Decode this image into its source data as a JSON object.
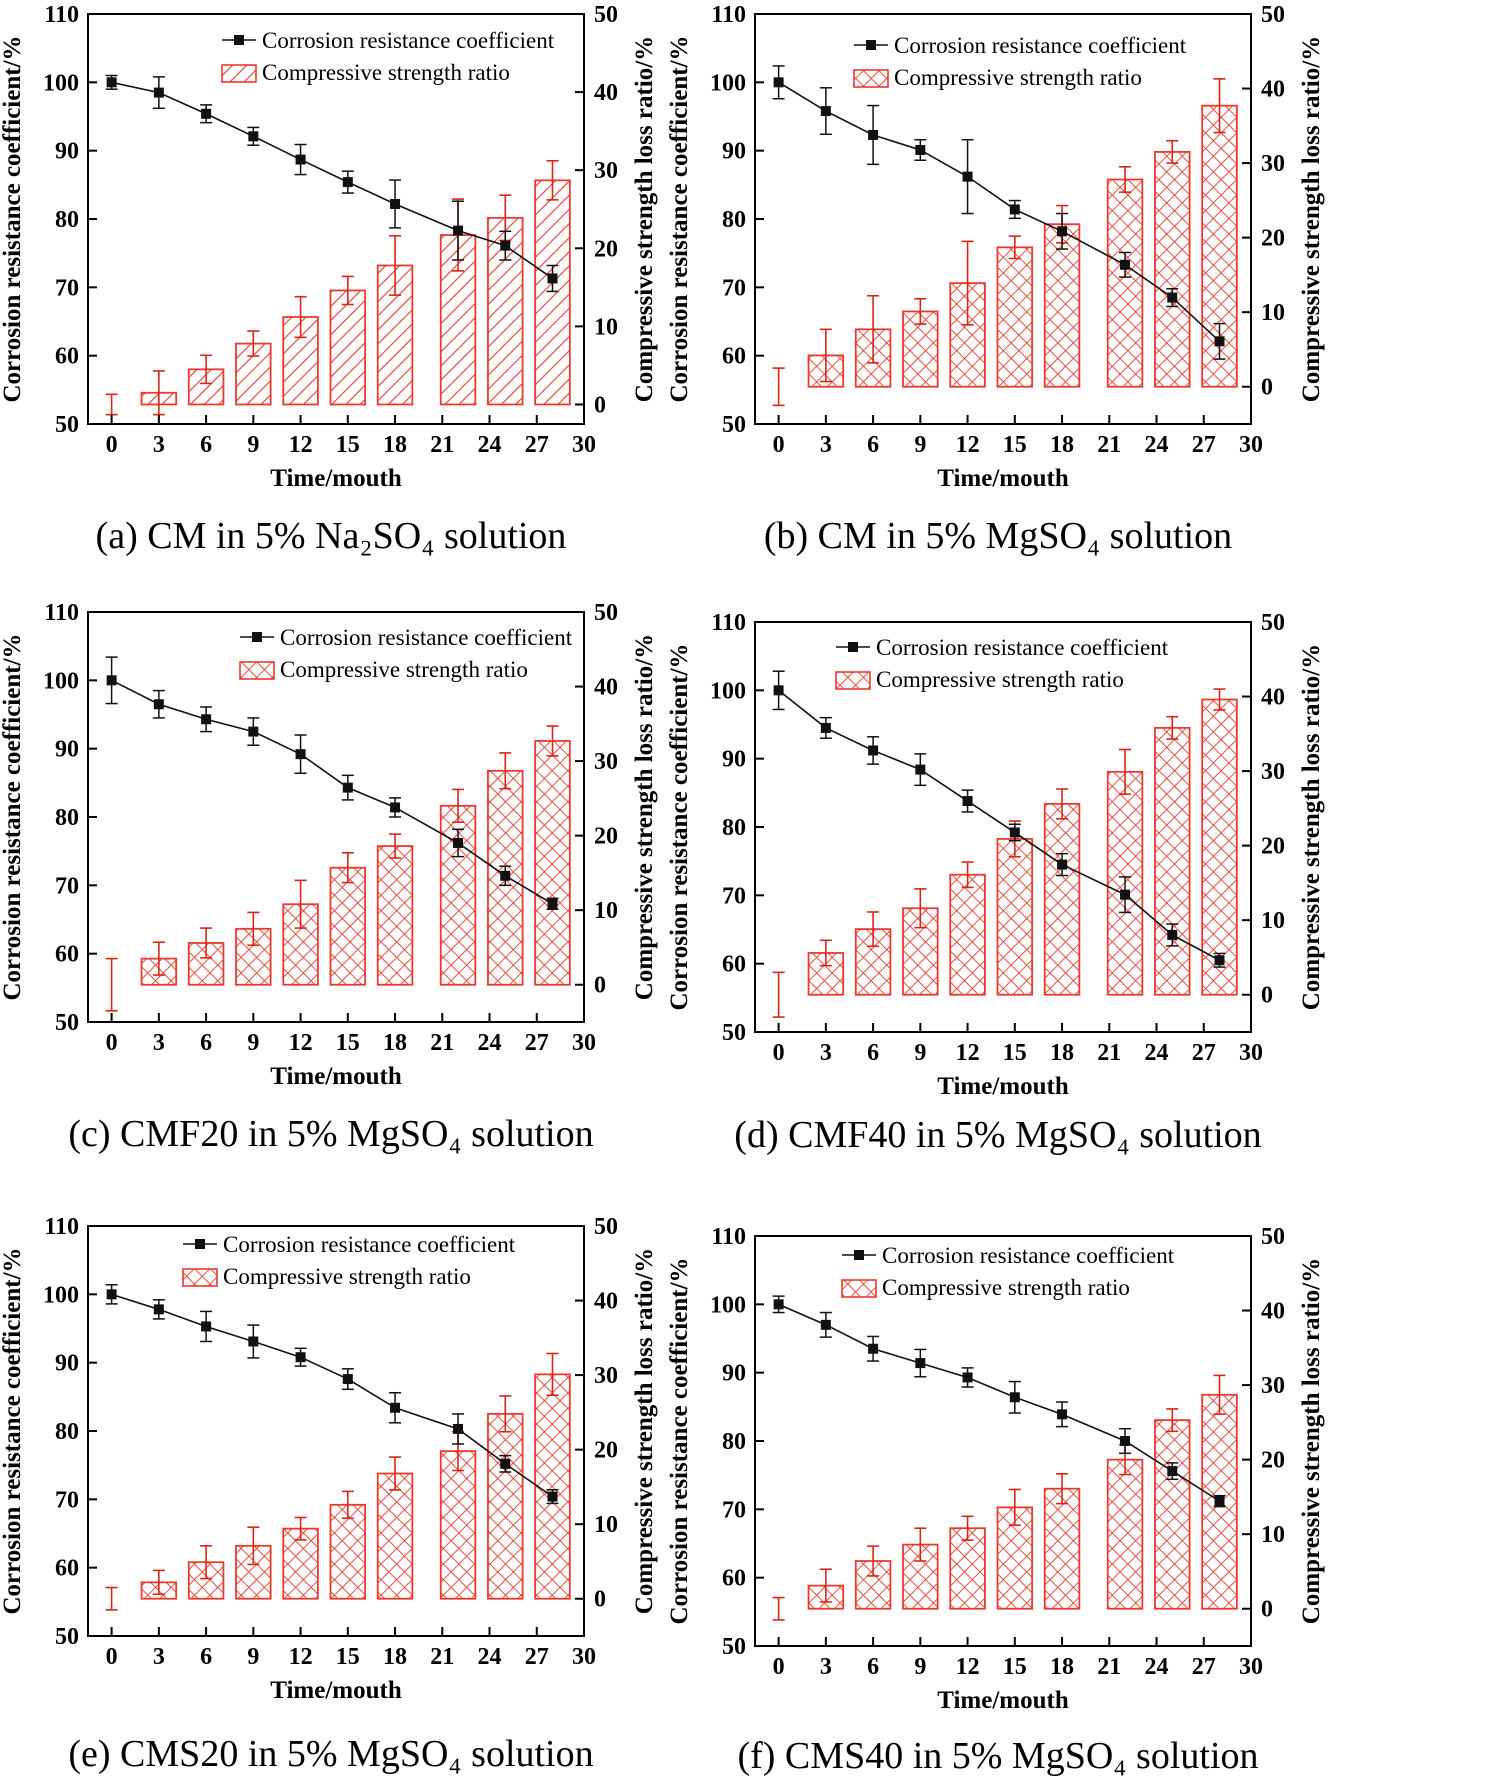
{
  "colors": {
    "bar": "#ea3a2e",
    "line": "#111111",
    "error": "#d62718"
  },
  "legend": {
    "line_label": "Corrosion resistance coefficient",
    "bar_label": "Compressive strength ratio"
  },
  "axes": {
    "xlabel": "Time/mouth",
    "ylabel_left": "Corrosion resistance coefficient/%",
    "ylabel_right": "Compressive strength loss ratio/%",
    "x_ticks": [
      "0",
      "3",
      "6",
      "9",
      "12",
      "15",
      "18",
      "21",
      "24",
      "27",
      "30"
    ],
    "y_left_ticks": [
      "50",
      "60",
      "70",
      "80",
      "90",
      "100",
      "110"
    ],
    "y_right_ticks": [
      "0",
      "10",
      "20",
      "30",
      "40",
      "50"
    ]
  },
  "chart_data": [
    {
      "type": "bar+line",
      "caption": {
        "prefix": "(a) CM in 5% ",
        "formula": "Na₂SO₄",
        "suffix": " solution"
      },
      "pattern": "hatch",
      "xlim": [
        -1.5,
        30
      ],
      "ylim_left": [
        50,
        110
      ],
      "ylim_right": [
        -2.5,
        50
      ],
      "x": [
        0,
        3,
        6,
        9,
        12,
        15,
        18,
        22,
        25,
        28
      ],
      "line_series": {
        "name": "Corrosion resistance coefficient",
        "values": [
          100,
          98.5,
          95.4,
          92.1,
          88.7,
          85.4,
          82.2,
          78.3,
          76.1,
          71.3
        ],
        "errors": [
          1.0,
          2.3,
          1.3,
          1.3,
          2.2,
          1.6,
          3.5,
          4.3,
          2.1,
          1.9
        ]
      },
      "bar_series": {
        "name": "Compressive strength ratio",
        "values": [
          0,
          1.5,
          4.5,
          7.8,
          11.2,
          14.6,
          17.8,
          21.7,
          23.9,
          28.7
        ],
        "errors": [
          1.3,
          2.8,
          1.8,
          1.6,
          2.6,
          1.8,
          3.8,
          4.6,
          2.9,
          2.5
        ]
      }
    },
    {
      "type": "bar+line",
      "caption": {
        "prefix": "(b) CM in 5% ",
        "formula": "MgSO₄",
        "suffix": " solution"
      },
      "pattern": "cross",
      "xlim": [
        -1.5,
        30
      ],
      "ylim_left": [
        50,
        110
      ],
      "ylim_right": [
        -5,
        50
      ],
      "x": [
        0,
        3,
        6,
        9,
        12,
        15,
        18,
        22,
        25,
        28
      ],
      "line_series": {
        "name": "Corrosion resistance coefficient",
        "values": [
          100,
          95.8,
          92.3,
          90.1,
          86.2,
          81.4,
          78.2,
          73.3,
          68.5,
          62.1
        ],
        "errors": [
          2.4,
          3.4,
          4.3,
          1.5,
          5.4,
          1.3,
          2.6,
          1.8,
          1.3,
          2.6
        ]
      },
      "bar_series": {
        "name": "Compressive strength ratio",
        "values": [
          0,
          4.2,
          7.7,
          10.1,
          13.9,
          18.7,
          21.8,
          27.8,
          31.5,
          37.7
        ],
        "errors": [
          2.5,
          3.5,
          4.5,
          1.7,
          5.6,
          1.5,
          2.5,
          1.7,
          1.5,
          3.6
        ]
      }
    },
    {
      "type": "bar+line",
      "caption": {
        "prefix": "(c) CMF20 in 5% ",
        "formula": "MgSO₄",
        "suffix": " solution"
      },
      "pattern": "cross",
      "xlim": [
        -1.5,
        30
      ],
      "ylim_left": [
        50,
        110
      ],
      "ylim_right": [
        -5,
        50
      ],
      "x": [
        0,
        3,
        6,
        9,
        12,
        15,
        18,
        22,
        25,
        28
      ],
      "line_series": {
        "name": "Corrosion resistance coefficient",
        "values": [
          100,
          96.5,
          94.3,
          92.5,
          89.2,
          84.3,
          81.4,
          76.2,
          71.4,
          67.3
        ],
        "errors": [
          3.4,
          2.0,
          1.8,
          2.0,
          2.8,
          1.8,
          1.4,
          2.0,
          1.4,
          0.8
        ]
      },
      "bar_series": {
        "name": "Compressive strength ratio",
        "values": [
          0,
          3.5,
          5.6,
          7.5,
          10.8,
          15.7,
          18.6,
          24.0,
          28.7,
          32.7
        ],
        "errors": [
          3.5,
          2.2,
          2.0,
          2.2,
          3.2,
          2.0,
          1.6,
          2.2,
          2.4,
          2.0
        ]
      }
    },
    {
      "type": "bar+line",
      "caption": {
        "prefix": "(d) CMF40 in 5% ",
        "formula": "MgSO₄",
        "suffix": " solution"
      },
      "pattern": "cross",
      "xlim": [
        -1.5,
        30
      ],
      "ylim_left": [
        50,
        110
      ],
      "ylim_right": [
        -5,
        50
      ],
      "x": [
        0,
        3,
        6,
        9,
        12,
        15,
        18,
        22,
        25,
        28
      ],
      "line_series": {
        "name": "Corrosion resistance coefficient",
        "values": [
          100,
          94.5,
          91.2,
          88.4,
          83.8,
          79.2,
          74.5,
          70.1,
          64.2,
          60.5
        ],
        "errors": [
          2.8,
          1.5,
          2.0,
          2.3,
          1.6,
          1.2,
          1.6,
          2.6,
          1.6,
          1.0
        ]
      },
      "bar_series": {
        "name": "Compressive strength ratio",
        "values": [
          0,
          5.6,
          8.8,
          11.6,
          16.1,
          20.9,
          25.6,
          29.9,
          35.8,
          39.6
        ],
        "errors": [
          3.0,
          1.7,
          2.3,
          2.6,
          1.7,
          2.4,
          2.0,
          3.0,
          1.5,
          1.4
        ]
      }
    },
    {
      "type": "bar+line",
      "caption": {
        "prefix": "(e) CMS20 in 5% ",
        "formula": "MgSO₄",
        "suffix": " solution"
      },
      "pattern": "cross",
      "xlim": [
        -1.5,
        30
      ],
      "ylim_left": [
        50,
        110
      ],
      "ylim_right": [
        -5,
        50
      ],
      "x": [
        0,
        3,
        6,
        9,
        12,
        15,
        18,
        22,
        25,
        28
      ],
      "line_series": {
        "name": "Corrosion resistance coefficient",
        "values": [
          100,
          97.8,
          95.3,
          93.1,
          90.8,
          87.6,
          83.4,
          80.3,
          75.2,
          70.4
        ],
        "errors": [
          1.4,
          1.4,
          2.2,
          2.4,
          1.3,
          1.5,
          2.2,
          2.2,
          1.2,
          1.0
        ]
      },
      "bar_series": {
        "name": "Compressive strength ratio",
        "values": [
          0,
          2.2,
          4.9,
          7.1,
          9.4,
          12.6,
          16.8,
          19.8,
          24.8,
          30.1
        ],
        "errors": [
          1.5,
          1.6,
          2.2,
          2.5,
          1.5,
          1.8,
          2.2,
          2.6,
          2.4,
          2.8
        ]
      }
    },
    {
      "type": "bar+line",
      "caption": {
        "prefix": "(f) CMS40 in 5% ",
        "formula": "MgSO₄",
        "suffix": " solution"
      },
      "pattern": "cross",
      "xlim": [
        -1.5,
        30
      ],
      "ylim_left": [
        50,
        110
      ],
      "ylim_right": [
        -5,
        50
      ],
      "x": [
        0,
        3,
        6,
        9,
        12,
        15,
        18,
        22,
        25,
        28
      ],
      "line_series": {
        "name": "Corrosion resistance coefficient",
        "values": [
          100,
          97.0,
          93.5,
          91.4,
          89.3,
          86.4,
          83.9,
          80.0,
          75.6,
          71.2
        ],
        "errors": [
          1.2,
          1.8,
          1.8,
          2.0,
          1.4,
          2.3,
          1.8,
          1.8,
          1.2,
          0.8
        ]
      },
      "bar_series": {
        "name": "Compressive strength ratio",
        "values": [
          0,
          3.1,
          6.4,
          8.6,
          10.8,
          13.6,
          16.1,
          20.0,
          25.3,
          28.7
        ],
        "errors": [
          1.5,
          2.2,
          2.0,
          2.2,
          1.6,
          2.4,
          2.0,
          2.0,
          1.5,
          2.6
        ]
      }
    }
  ]
}
